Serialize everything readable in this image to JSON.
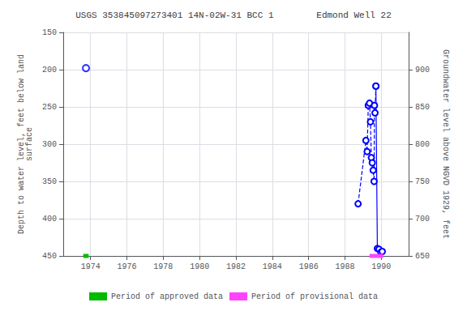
{
  "chart_data": {
    "type": "line",
    "title": "USGS 353845097273401 14N-02W-31 BCC 1        Edmond Well 22",
    "ylabel": "Depth to water level, feet below land\nsurface",
    "y2label": "Groundwater level above NGVD 1929, feet",
    "xlim": [
      1972.5,
      1991.5
    ],
    "xticks": [
      1974,
      1976,
      1978,
      1980,
      1982,
      1984,
      1986,
      1988,
      1990
    ],
    "ylim": [
      450,
      150
    ],
    "yticks": [
      150,
      200,
      250,
      300,
      350,
      400,
      450
    ],
    "y2lim": [
      650,
      950
    ],
    "y2ticks": [
      650,
      700,
      750,
      800,
      850,
      900
    ],
    "grid": true,
    "legend": "bottom",
    "series": [
      {
        "name": "Period of approved data",
        "type": "line",
        "line_style": "solid",
        "color": "#00bb00",
        "x": [
          1973.6,
          1973.9
        ],
        "values": [
          450,
          450
        ]
      },
      {
        "name": "Period of provisional data",
        "type": "line",
        "line_style": "solid",
        "color": "#ff44ff",
        "x": [
          1989.35,
          1990.1
        ],
        "values": [
          450,
          450
        ]
      },
      {
        "type": "scatter",
        "marker": "open_circle",
        "color": "#0000ff",
        "x": [
          1973.75
        ],
        "values": [
          198
        ]
      },
      {
        "type": "line",
        "line_style": "dashed",
        "marker": "open_circle",
        "color": "#0000ff",
        "x": [
          1988.72,
          1989.15,
          1989.22,
          1989.28,
          1989.35,
          1989.4,
          1989.45,
          1989.5,
          1989.55,
          1989.6,
          1989.62,
          1989.65,
          1989.7
        ],
        "values": [
          380,
          295,
          310,
          248,
          245,
          270,
          318,
          325,
          335,
          350,
          248,
          258,
          222
        ]
      },
      {
        "type": "line",
        "line_style": "solid",
        "marker": "open_circle",
        "color": "#0000ff",
        "x": [
          1989.7,
          1989.78,
          1989.87,
          1989.97,
          1990.05
        ],
        "values": [
          222,
          440,
          441,
          445,
          444
        ]
      }
    ]
  }
}
